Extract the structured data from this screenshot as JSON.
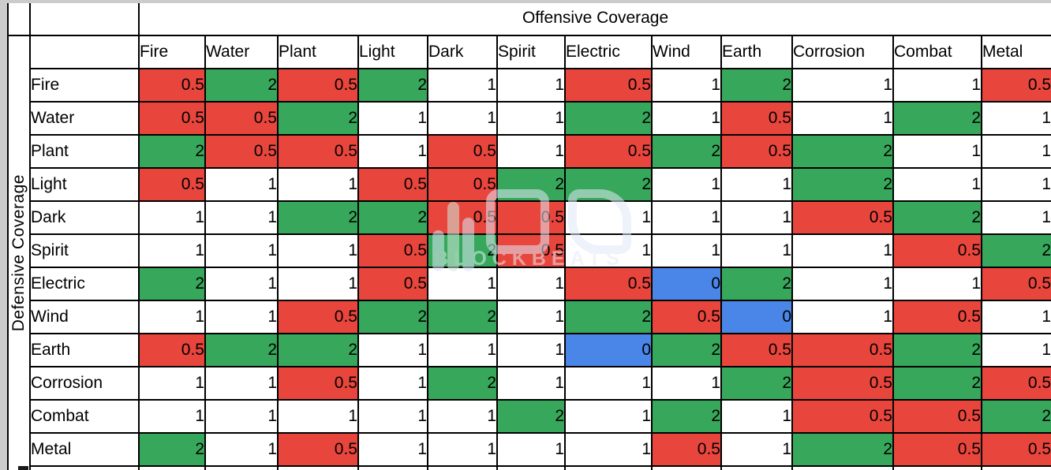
{
  "chart_data": {
    "type": "heatmap",
    "col_axis_title": "Offensive Coverage",
    "row_axis_title": "Defensive Coverage",
    "columns": [
      "Fire",
      "Water",
      "Plant",
      "Light",
      "Dark",
      "Spirit",
      "Electric",
      "Wind",
      "Earth",
      "Corrosion",
      "Combat",
      "Metal"
    ],
    "rows": [
      "Fire",
      "Water",
      "Plant",
      "Light",
      "Dark",
      "Spirit",
      "Electric",
      "Wind",
      "Earth",
      "Corrosion",
      "Combat",
      "Metal"
    ],
    "values": [
      [
        0.5,
        2,
        0.5,
        2,
        1,
        1,
        0.5,
        1,
        2,
        1,
        1,
        0.5
      ],
      [
        0.5,
        0.5,
        2,
        1,
        1,
        1,
        2,
        1,
        0.5,
        1,
        2,
        1
      ],
      [
        2,
        0.5,
        0.5,
        1,
        0.5,
        1,
        0.5,
        2,
        0.5,
        2,
        1,
        1
      ],
      [
        0.5,
        1,
        1,
        0.5,
        0.5,
        2,
        2,
        1,
        1,
        2,
        1,
        1
      ],
      [
        1,
        1,
        2,
        2,
        0.5,
        0.5,
        1,
        1,
        1,
        0.5,
        2,
        1
      ],
      [
        1,
        1,
        1,
        0.5,
        2,
        0.5,
        1,
        1,
        1,
        1,
        0.5,
        2
      ],
      [
        2,
        1,
        1,
        0.5,
        1,
        1,
        0.5,
        0,
        2,
        1,
        1,
        0.5
      ],
      [
        1,
        1,
        0.5,
        2,
        2,
        1,
        2,
        0.5,
        0,
        1,
        0.5,
        1
      ],
      [
        0.5,
        2,
        2,
        1,
        1,
        1,
        0,
        2,
        0.5,
        0.5,
        2,
        1
      ],
      [
        1,
        1,
        0.5,
        1,
        2,
        1,
        1,
        1,
        2,
        0.5,
        2,
        0.5
      ],
      [
        1,
        1,
        1,
        1,
        1,
        2,
        1,
        2,
        1,
        0.5,
        0.5,
        2
      ],
      [
        2,
        1,
        0.5,
        1,
        1,
        1,
        1,
        0.5,
        1,
        2,
        0.5,
        0.5
      ]
    ],
    "value_colors": {
      "0": "#4a86e8",
      "0.5": "#e8463d",
      "1": "#ffffff",
      "2": "#37a85b"
    },
    "grid": true,
    "legend": "none"
  },
  "watermark": {
    "brand": "BLOCKBEATS"
  }
}
